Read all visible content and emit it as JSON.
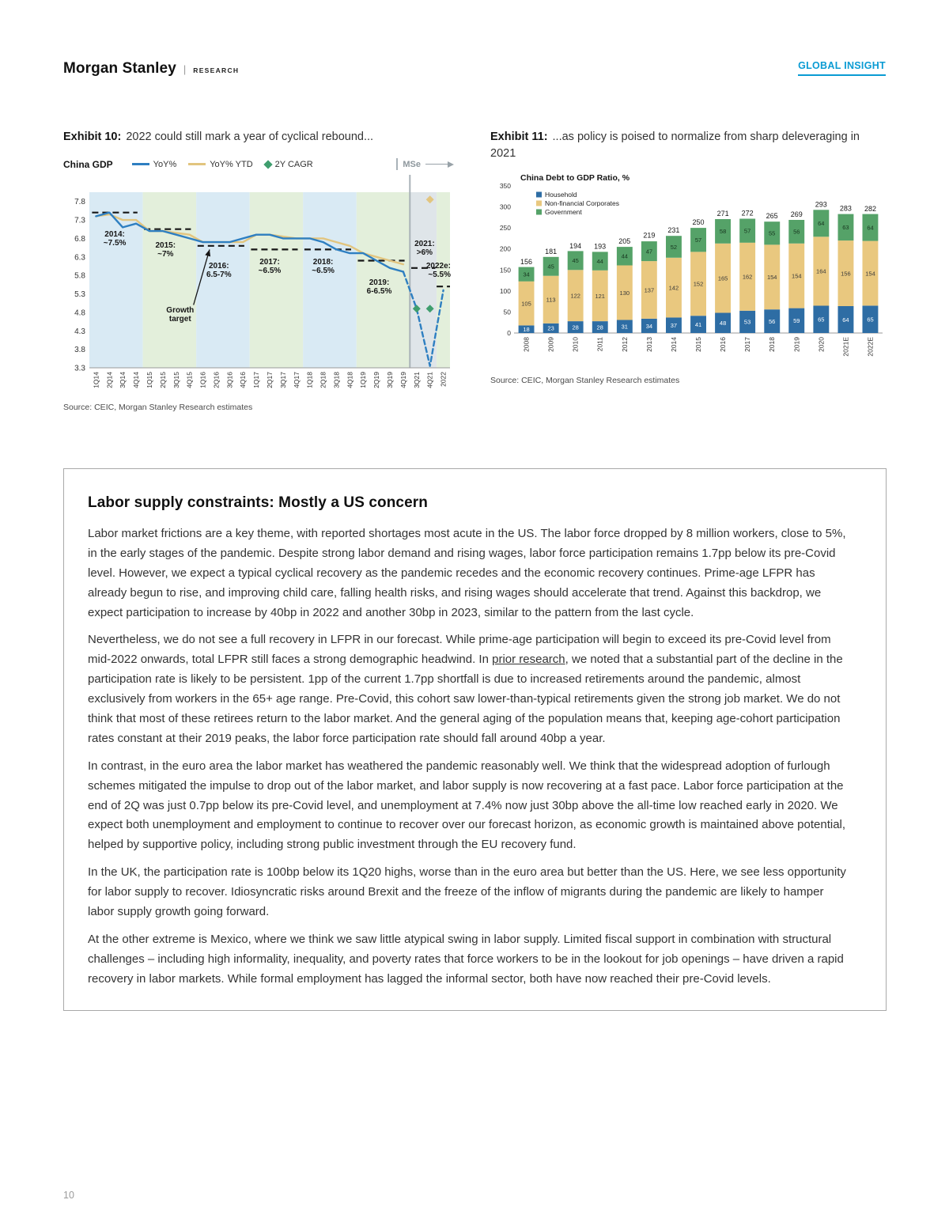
{
  "page": {
    "brand": "Morgan Stanley",
    "brand_divider": "|",
    "brand_sub": "RESEARCH",
    "tag": "GLOBAL INSIGHT",
    "accent_color": "#0a9bd3",
    "page_number": "10"
  },
  "exhibit10": {
    "label": "Exhibit 10:",
    "title": "2022 could still mark a year of cyclical rebound...",
    "source": "Source: CEIC, Morgan Stanley Research estimates"
  },
  "exhibit11": {
    "label": "Exhibit 11:",
    "title": "...as policy is poised to normalize from sharp deleveraging in 2021",
    "source": "Source: CEIC, Morgan Stanley Research estimates"
  },
  "box": {
    "title": "Labor supply constraints: Mostly a US concern",
    "paragraphs": [
      {
        "segments": [
          {
            "text": "Labor market frictions are a key theme, with reported shortages most acute in the US. The labor force dropped by 8 million workers, close to 5%, in the early stages of the pandemic. Despite strong labor demand and rising wages, labor force participation remains 1.7pp below its pre-Covid level. However, we expect a typical cyclical recovery as the pandemic recedes and the economic recovery continues. Prime-age LFPR has already begun to rise, and improving child care, falling health risks, and rising wages should accelerate that trend. Against this backdrop, we expect participation to increase by 40bp in 2022 and another 30bp in 2023, similar to the pattern from the last cycle."
          }
        ]
      },
      {
        "segments": [
          {
            "text": "Nevertheless, we do not see a full recovery in LFPR in our forecast. While prime-age participation will begin to exceed its pre-Covid level from mid-2022 onwards, total LFPR still faces a strong demographic headwind. In "
          },
          {
            "text": "prior research",
            "link": true
          },
          {
            "text": ", we noted that a substantial part of the decline in the participation rate is likely to be persistent. 1pp of the current 1.7pp shortfall is due to increased retirements around the pandemic, almost exclusively from workers in the 65+ age range. Pre-Covid, this cohort saw lower-than-typical retirements given the strong job market. We do not think that most of these retirees return to the labor market. And the general aging of the population means that, keeping age-cohort participation rates constant at their 2019 peaks, the labor force participation rate should fall around 40bp a year."
          }
        ]
      },
      {
        "segments": [
          {
            "text": "In contrast, in the euro area the labor market has weathered the pandemic reasonably well. We think that the widespread adoption of furlough schemes mitigated the impulse to drop out of the labor market, and labor supply is now recovering at a fast pace. Labor force participation at the end of 2Q was just 0.7pp below its pre-Covid level, and unemployment at 7.4% now just 30bp above the all-time low reached early in 2020. We expect both unemployment and employment to continue to recover over our forecast horizon, as economic growth is maintained above potential, helped by supportive policy, including strong public investment through the EU recovery fund."
          }
        ]
      },
      {
        "segments": [
          {
            "text": "In the UK, the participation rate is 100bp below its 1Q20 highs, worse than in the euro area but better than the US. Here, we see less opportunity for labor supply to recover. Idiosyncratic risks around Brexit and the freeze of the inflow of migrants during the pandemic are likely to hamper labor supply growth going forward."
          }
        ]
      },
      {
        "segments": [
          {
            "text": "At the other extreme is Mexico, where we think we saw little atypical swing in labor supply. Limited fiscal support in combination with structural challenges – including high informality, inequality, and poverty rates that force workers to be in the lookout for job openings – have driven a rapid recovery in labor markets. While formal employment has lagged the informal sector, both have now reached their pre-Covid levels."
          }
        ]
      }
    ]
  },
  "chart_data": [
    {
      "type": "line",
      "title": "China GDP",
      "x": [
        "1Q14",
        "2Q14",
        "3Q14",
        "4Q14",
        "1Q15",
        "2Q15",
        "3Q15",
        "4Q15",
        "1Q16",
        "2Q16",
        "3Q16",
        "4Q16",
        "1Q17",
        "2Q17",
        "3Q17",
        "4Q17",
        "1Q18",
        "2Q18",
        "3Q18",
        "4Q18",
        "1Q19",
        "2Q19",
        "3Q19",
        "4Q19",
        "3Q21",
        "4Q21",
        "2022"
      ],
      "ylim": [
        3.3,
        8.05
      ],
      "yticks": [
        7.8,
        7.3,
        6.8,
        6.3,
        5.8,
        5.3,
        4.8,
        4.3,
        3.8,
        3.3
      ],
      "legend": [
        {
          "label": "YoY%",
          "color": "#2e7fc1",
          "shape": "line"
        },
        {
          "label": "YoY% YTD",
          "color": "#e2c57f",
          "shape": "line"
        },
        {
          "label": "2Y CAGR",
          "color": "#3f9e6e",
          "shape": "diamond"
        },
        {
          "label": "MSe",
          "color": "#98a2a8",
          "shape": "divider-arrow"
        }
      ],
      "series": [
        {
          "name": "YoY% YTD",
          "color": "#e2c57f",
          "style": "solid",
          "points": [
            [
              0,
              7.4
            ],
            [
              1,
              7.45
            ],
            [
              2,
              7.3
            ],
            [
              3,
              7.3
            ],
            [
              4,
              7.0
            ],
            [
              5,
              7.0
            ],
            [
              6,
              6.95
            ],
            [
              7,
              6.9
            ],
            [
              8,
              6.7
            ],
            [
              9,
              6.7
            ],
            [
              10,
              6.7
            ],
            [
              11,
              6.7
            ],
            [
              12,
              6.9
            ],
            [
              13,
              6.9
            ],
            [
              14,
              6.85
            ],
            [
              15,
              6.8
            ],
            [
              16,
              6.8
            ],
            [
              17,
              6.8
            ],
            [
              18,
              6.7
            ],
            [
              19,
              6.6
            ],
            [
              20,
              6.4
            ],
            [
              21,
              6.3
            ],
            [
              22,
              6.2
            ],
            [
              23,
              6.1
            ]
          ]
        },
        {
          "name": "YoY%",
          "color": "#2e7fc1",
          "style": "solid",
          "points": [
            [
              0,
              7.4
            ],
            [
              1,
              7.5
            ],
            [
              2,
              7.1
            ],
            [
              3,
              7.2
            ],
            [
              4,
              7.0
            ],
            [
              5,
              7.0
            ],
            [
              6,
              6.9
            ],
            [
              7,
              6.8
            ],
            [
              8,
              6.7
            ],
            [
              9,
              6.7
            ],
            [
              10,
              6.7
            ],
            [
              11,
              6.8
            ],
            [
              12,
              6.9
            ],
            [
              13,
              6.9
            ],
            [
              14,
              6.8
            ],
            [
              15,
              6.8
            ],
            [
              16,
              6.8
            ],
            [
              17,
              6.7
            ],
            [
              18,
              6.5
            ],
            [
              19,
              6.4
            ],
            [
              20,
              6.4
            ],
            [
              21,
              6.2
            ],
            [
              22,
              6.0
            ],
            [
              23,
              5.9
            ]
          ]
        },
        {
          "name": "YoY% MSe forecast",
          "color": "#2e7fc1",
          "style": "dashed",
          "points": [
            [
              23,
              5.9
            ],
            [
              24,
              4.9
            ],
            [
              25,
              3.35
            ],
            [
              26,
              5.4
            ]
          ]
        }
      ],
      "markers": [
        {
          "name": "2Y CAGR",
          "i": 24,
          "v": 4.9,
          "color": "#3f9e6e"
        },
        {
          "name": "2Y CAGR",
          "i": 25,
          "v": 4.9,
          "color": "#3f9e6e"
        },
        {
          "name": "YTD MSe",
          "i": 25,
          "v": 7.85,
          "color": "#e2c57f"
        }
      ],
      "bands": [
        {
          "from": 0,
          "to": 3,
          "color": "#d9eaf4"
        },
        {
          "from": 4,
          "to": 7,
          "color": "#e3efdb"
        },
        {
          "from": 8,
          "to": 11,
          "color": "#d9eaf4"
        },
        {
          "from": 12,
          "to": 15,
          "color": "#e3efdb"
        },
        {
          "from": 16,
          "to": 19,
          "color": "#d9eaf4"
        },
        {
          "from": 20,
          "to": 23,
          "color": "#e3efdb"
        },
        {
          "from": 24,
          "to": 25,
          "color": "#dfe5e9"
        },
        {
          "from": 26,
          "to": 26,
          "color": "#e3efdb"
        }
      ],
      "targets": [
        {
          "from": 0.2,
          "to": 3.6,
          "v": 7.5
        },
        {
          "from": 4.1,
          "to": 7.6,
          "v": 7.05
        },
        {
          "from": 8.1,
          "to": 11.6,
          "v": 6.6
        },
        {
          "from": 12.1,
          "to": 15.6,
          "v": 6.5
        },
        {
          "from": 16.1,
          "to": 19.6,
          "v": 6.5
        },
        {
          "from": 20.1,
          "to": 23.6,
          "v": 6.2
        },
        {
          "from": 24.1,
          "to": 25.9,
          "v": 6.0
        },
        {
          "from": 26.0,
          "to": 27.0,
          "v": 5.5
        }
      ],
      "annotations": [
        {
          "i": 1.4,
          "v": 6.85,
          "lines": [
            "2014:",
            "~7.5%"
          ]
        },
        {
          "i": 5.2,
          "v": 6.55,
          "lines": [
            "2015:",
            "~7%"
          ]
        },
        {
          "i": 9.2,
          "v": 6.0,
          "lines": [
            "2016:",
            "6.5-7%"
          ]
        },
        {
          "i": 13.0,
          "v": 6.1,
          "lines": [
            "2017:",
            "~6.5%"
          ]
        },
        {
          "i": 17.0,
          "v": 6.1,
          "lines": [
            "2018:",
            "~6.5%"
          ]
        },
        {
          "i": 21.2,
          "v": 5.55,
          "lines": [
            "2019:",
            "6-6.5%"
          ]
        },
        {
          "i": 24.6,
          "v": 6.6,
          "lines": [
            "2021:",
            ">6%"
          ]
        },
        {
          "align": "right",
          "v": 6.0,
          "lines": [
            "2022e:",
            "~5.5%"
          ]
        },
        {
          "i": 6.3,
          "v": 4.8,
          "lines": [
            "Growth",
            "target"
          ]
        }
      ],
      "arrow": {
        "x1": 7.3,
        "y1": 5.0,
        "x2": 8.5,
        "y2": 6.5
      },
      "mse_divider": 24
    },
    {
      "type": "bar",
      "stacked": true,
      "title": "China Debt to GDP Ratio, %",
      "categories": [
        "2008",
        "2009",
        "2010",
        "2011",
        "2012",
        "2013",
        "2014",
        "2015",
        "2016",
        "2017",
        "2018",
        "2019",
        "2020",
        "2021E",
        "2022E"
      ],
      "series": [
        {
          "name": "Household",
          "color": "#2e6da4",
          "label_color": "#ffffff",
          "values": [
            18,
            23,
            28,
            28,
            31,
            34,
            37,
            41,
            48,
            53,
            56,
            59,
            65,
            64,
            65
          ]
        },
        {
          "name": "Non-financial Corporates",
          "color": "#e9c87f",
          "label_color": "#3a3a3a",
          "values": [
            105,
            113,
            122,
            121,
            130,
            137,
            142,
            152,
            165,
            162,
            154,
            154,
            164,
            156,
            154
          ]
        },
        {
          "name": "Government",
          "color": "#55a268",
          "label_color": "#17361f",
          "values": [
            34,
            45,
            45,
            44,
            44,
            47,
            52,
            57,
            58,
            57,
            55,
            56,
            64,
            63,
            64
          ]
        }
      ],
      "totals": [
        156,
        181,
        194,
        193,
        205,
        219,
        231,
        250,
        271,
        272,
        265,
        269,
        293,
        283,
        282
      ],
      "ylim": [
        0,
        350
      ],
      "ytick_step": 50,
      "legend_position": "top-left"
    }
  ]
}
